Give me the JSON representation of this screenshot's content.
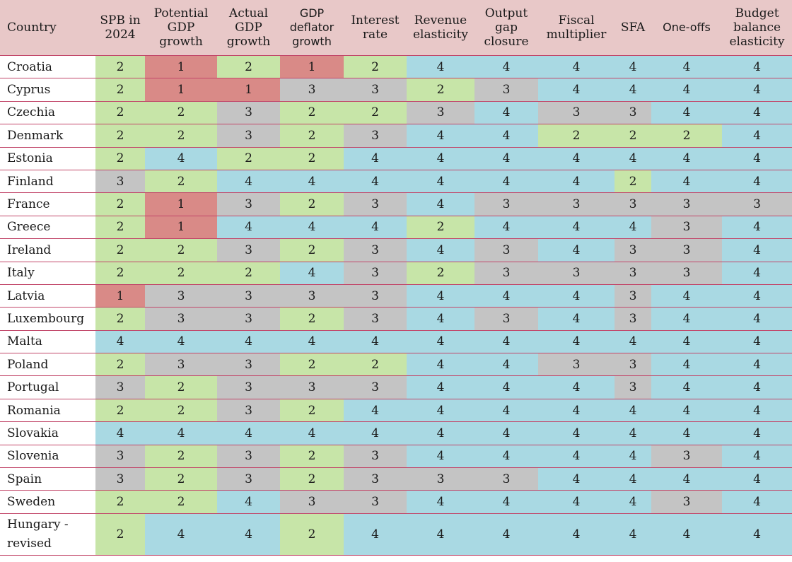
{
  "table": {
    "headers": [
      "Country",
      "SPB in 2024",
      "Potential GDP growth",
      "Actual GDP growth",
      "GDP deflator growth",
      "Interest rate",
      "Revenue elasticity",
      "Output gap closure",
      "Fiscal multiplier",
      "SFA",
      "One-offs",
      "Budget balance elasticity"
    ],
    "rows": [
      {
        "country": "Croatia",
        "values": [
          "2",
          "1",
          "2",
          "1",
          "2",
          "4",
          "4",
          "4",
          "4",
          "4",
          "4"
        ]
      },
      {
        "country": "Cyprus",
        "values": [
          "2",
          "1",
          "1",
          "3",
          "3",
          "2",
          "3",
          "4",
          "4",
          "4",
          "4"
        ]
      },
      {
        "country": "Czechia",
        "values": [
          "2",
          "2",
          "3",
          "2",
          "2",
          "3",
          "4",
          "3",
          "3",
          "4",
          "4"
        ]
      },
      {
        "country": "Denmark",
        "values": [
          "2",
          "2",
          "3",
          "2",
          "3",
          "4",
          "4",
          "2",
          "2",
          "2",
          "4"
        ]
      },
      {
        "country": "Estonia",
        "values": [
          "2",
          "4",
          "2",
          "2",
          "4",
          "4",
          "4",
          "4",
          "4",
          "4",
          "4"
        ]
      },
      {
        "country": "Finland",
        "values": [
          "3",
          "2",
          "4",
          "4",
          "4",
          "4",
          "4",
          "4",
          "2",
          "4",
          "4"
        ]
      },
      {
        "country": "France",
        "values": [
          "2",
          "1",
          "3",
          "2",
          "3",
          "4",
          "3",
          "3",
          "3",
          "3",
          "3"
        ]
      },
      {
        "country": "Greece",
        "values": [
          "2",
          "1",
          "4",
          "4",
          "4",
          "2",
          "4",
          "4",
          "4",
          "3",
          "4"
        ]
      },
      {
        "country": "Ireland",
        "values": [
          "2",
          "2",
          "3",
          "2",
          "3",
          "4",
          "3",
          "4",
          "3",
          "3",
          "4"
        ]
      },
      {
        "country": "Italy",
        "values": [
          "2",
          "2",
          "2",
          "4",
          "3",
          "2",
          "3",
          "3",
          "3",
          "3",
          "4"
        ]
      },
      {
        "country": "Latvia",
        "values": [
          "1",
          "3",
          "3",
          "3",
          "3",
          "4",
          "4",
          "4",
          "3",
          "4",
          "4"
        ]
      },
      {
        "country": "Luxembourg",
        "values": [
          "2",
          "3",
          "3",
          "2",
          "3",
          "4",
          "3",
          "4",
          "3",
          "4",
          "4"
        ]
      },
      {
        "country": "Malta",
        "values": [
          "4",
          "4",
          "4",
          "4",
          "4",
          "4",
          "4",
          "4",
          "4",
          "4",
          "4"
        ]
      },
      {
        "country": "Poland",
        "values": [
          "2",
          "3",
          "3",
          "2",
          "2",
          "4",
          "4",
          "3",
          "3",
          "4",
          "4"
        ]
      },
      {
        "country": "Portugal",
        "values": [
          "3",
          "2",
          "3",
          "3",
          "3",
          "4",
          "4",
          "4",
          "3",
          "4",
          "4"
        ]
      },
      {
        "country": "Romania",
        "values": [
          "2",
          "2",
          "3",
          "2",
          "4",
          "4",
          "4",
          "4",
          "4",
          "4",
          "4"
        ]
      },
      {
        "country": "Slovakia",
        "values": [
          "4",
          "4",
          "4",
          "4",
          "4",
          "4",
          "4",
          "4",
          "4",
          "4",
          "4"
        ]
      },
      {
        "country": "Slovenia",
        "values": [
          "3",
          "2",
          "3",
          "2",
          "3",
          "4",
          "4",
          "4",
          "4",
          "3",
          "4"
        ]
      },
      {
        "country": "Spain",
        "values": [
          "3",
          "2",
          "3",
          "2",
          "3",
          "3",
          "3",
          "4",
          "4",
          "4",
          "4"
        ]
      },
      {
        "country": "Sweden",
        "values": [
          "2",
          "2",
          "4",
          "3",
          "3",
          "4",
          "4",
          "4",
          "4",
          "3",
          "4"
        ]
      },
      {
        "country": "Hungary - revised",
        "values": [
          "2",
          "4",
          "4",
          "2",
          "4",
          "4",
          "4",
          "4",
          "4",
          "4",
          "4"
        ]
      }
    ]
  },
  "colors": {
    "header_bg": "#e8c8c8",
    "level_1": "#d98a87",
    "level_2": "#c7e5a8",
    "level_3": "#c4c4c4",
    "level_4": "#a9d9e3",
    "row_border": "#c2476a"
  }
}
